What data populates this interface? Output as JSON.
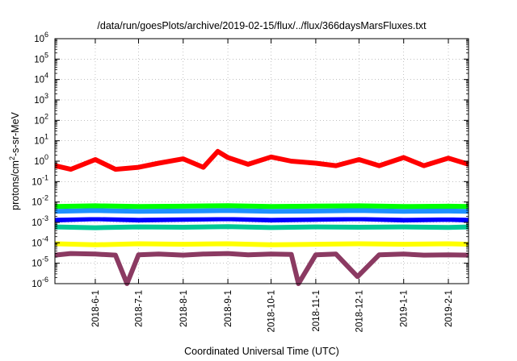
{
  "chart_data": {
    "type": "line",
    "title": "/data/run/goesPlots/archive/2019-02-15/flux/../flux/366daysMarsFluxes.txt",
    "xlabel": "Coordinated Universal Time (UTC)",
    "ylabel_parts": [
      "protons/cm",
      "2",
      "-s-sr-MeV"
    ],
    "x_scale": "time",
    "xlim": [
      "2018-05-04",
      "2019-02-15"
    ],
    "x_ticks": [
      "2018-6-1",
      "2018-7-1",
      "2018-8-1",
      "2018-9-1",
      "2018-10-1",
      "2018-11-1",
      "2018-12-1",
      "2019-1-1",
      "2019-2-1"
    ],
    "y_scale": "log",
    "ylim": [
      1e-06,
      1000000.0
    ],
    "y_ticks": [
      {
        "value": 1e-06,
        "base": "10",
        "exp": "-6"
      },
      {
        "value": 1e-05,
        "base": "10",
        "exp": "-5"
      },
      {
        "value": 0.0001,
        "base": "10",
        "exp": "-4"
      },
      {
        "value": 0.001,
        "base": "10",
        "exp": "-3"
      },
      {
        "value": 0.01,
        "base": "10",
        "exp": "-2"
      },
      {
        "value": 0.1,
        "base": "10",
        "exp": "-1"
      },
      {
        "value": 1.0,
        "base": "10",
        "exp": "0"
      },
      {
        "value": 10.0,
        "base": "10",
        "exp": "1"
      },
      {
        "value": 100.0,
        "base": "10",
        "exp": "2"
      },
      {
        "value": 1000.0,
        "base": "10",
        "exp": "3"
      },
      {
        "value": 10000.0,
        "base": "10",
        "exp": "4"
      },
      {
        "value": 100000.0,
        "base": "10",
        "exp": "5"
      },
      {
        "value": 1000000.0,
        "base": "10",
        "exp": "6"
      }
    ],
    "grid": true,
    "legend": "none",
    "series": [
      {
        "color": "#8b3a62",
        "x": [
          "2018-05-04",
          "2018-05-15",
          "2018-06-01",
          "2018-06-15",
          "2018-06-23",
          "2018-07-01",
          "2018-07-15",
          "2018-08-01",
          "2018-08-15",
          "2018-09-01",
          "2018-09-15",
          "2018-10-01",
          "2018-10-15",
          "2018-10-20",
          "2018-11-01",
          "2018-11-15",
          "2018-11-30",
          "2018-12-15",
          "2019-01-01",
          "2019-01-15",
          "2019-02-01",
          "2019-02-15"
        ],
        "y": [
          2.5e-05,
          3e-05,
          2.8e-05,
          2.5e-05,
          1e-06,
          2.6e-05,
          2.8e-05,
          2.5e-05,
          2.8e-05,
          3e-05,
          2.6e-05,
          2.8e-05,
          2.7e-05,
          1e-06,
          2.6e-05,
          2.8e-05,
          2.2e-06,
          2.6e-05,
          2.8e-05,
          2.5e-05,
          2.6e-05,
          2.5e-05
        ]
      },
      {
        "color": "#ffff00",
        "x": [
          "2018-05-04",
          "2018-06-01",
          "2018-07-01",
          "2018-08-01",
          "2018-09-01",
          "2018-10-01",
          "2018-11-01",
          "2018-12-01",
          "2019-01-01",
          "2019-02-01",
          "2019-02-15"
        ],
        "y": [
          9e-05,
          8e-05,
          9e-05,
          8.5e-05,
          9e-05,
          8e-05,
          8.5e-05,
          9e-05,
          8.5e-05,
          9e-05,
          8.5e-05
        ]
      },
      {
        "color": "#00c896",
        "x": [
          "2018-05-04",
          "2018-06-01",
          "2018-07-01",
          "2018-08-01",
          "2018-09-01",
          "2018-10-01",
          "2018-11-01",
          "2018-12-01",
          "2019-01-01",
          "2019-02-01",
          "2019-02-15"
        ],
        "y": [
          0.0006,
          0.00055,
          0.0006,
          0.00058,
          0.00062,
          0.00056,
          0.0006,
          0.00058,
          0.0006,
          0.00057,
          0.0006
        ]
      },
      {
        "color": "#0000ff",
        "x": [
          "2018-05-04",
          "2018-06-01",
          "2018-07-01",
          "2018-08-01",
          "2018-09-01",
          "2018-10-01",
          "2018-11-01",
          "2018-12-01",
          "2019-01-01",
          "2019-02-01",
          "2019-02-15"
        ],
        "y": [
          0.0013,
          0.0015,
          0.0013,
          0.0014,
          0.0015,
          0.0013,
          0.0014,
          0.0015,
          0.0013,
          0.0014,
          0.0013
        ]
      },
      {
        "color": "#ffffff",
        "x": [
          "2018-05-04",
          "2018-06-01",
          "2018-07-01",
          "2018-08-01",
          "2018-09-01",
          "2018-10-01",
          "2018-11-01",
          "2018-12-01",
          "2019-01-01",
          "2019-02-01",
          "2019-02-15"
        ],
        "y": [
          0.0022,
          0.0024,
          0.0022,
          0.0023,
          0.0024,
          0.0022,
          0.0023,
          0.0024,
          0.0022,
          0.0023,
          0.0022
        ]
      },
      {
        "color": "#1e90ff",
        "x": [
          "2018-05-04",
          "2018-06-01",
          "2018-07-01",
          "2018-08-01",
          "2018-09-01",
          "2018-10-01",
          "2018-11-01",
          "2018-12-01",
          "2019-01-01",
          "2019-02-01",
          "2019-02-15"
        ],
        "y": [
          0.0035,
          0.0038,
          0.0035,
          0.0036,
          0.0038,
          0.0035,
          0.0036,
          0.0038,
          0.0035,
          0.0036,
          0.0035
        ]
      },
      {
        "color": "#00ff00",
        "x": [
          "2018-05-04",
          "2018-06-01",
          "2018-07-01",
          "2018-08-01",
          "2018-09-01",
          "2018-10-01",
          "2018-11-01",
          "2018-12-01",
          "2019-01-01",
          "2019-02-01",
          "2019-02-15"
        ],
        "y": [
          0.006,
          0.0065,
          0.006,
          0.0062,
          0.0066,
          0.006,
          0.0063,
          0.0065,
          0.006,
          0.0062,
          0.006
        ]
      },
      {
        "color": "#ff0000",
        "x": [
          "2018-05-04",
          "2018-05-15",
          "2018-06-01",
          "2018-06-15",
          "2018-07-01",
          "2018-07-15",
          "2018-08-01",
          "2018-08-15",
          "2018-08-25",
          "2018-09-01",
          "2018-09-15",
          "2018-10-01",
          "2018-10-15",
          "2018-11-01",
          "2018-11-15",
          "2018-12-01",
          "2018-12-15",
          "2019-01-01",
          "2019-01-15",
          "2019-02-01",
          "2019-02-15"
        ],
        "y": [
          0.6,
          0.4,
          1.2,
          0.4,
          0.5,
          0.8,
          1.3,
          0.5,
          3.0,
          1.5,
          0.7,
          1.6,
          1.0,
          0.8,
          0.6,
          1.2,
          0.6,
          1.5,
          0.6,
          1.4,
          0.7
        ]
      }
    ]
  }
}
